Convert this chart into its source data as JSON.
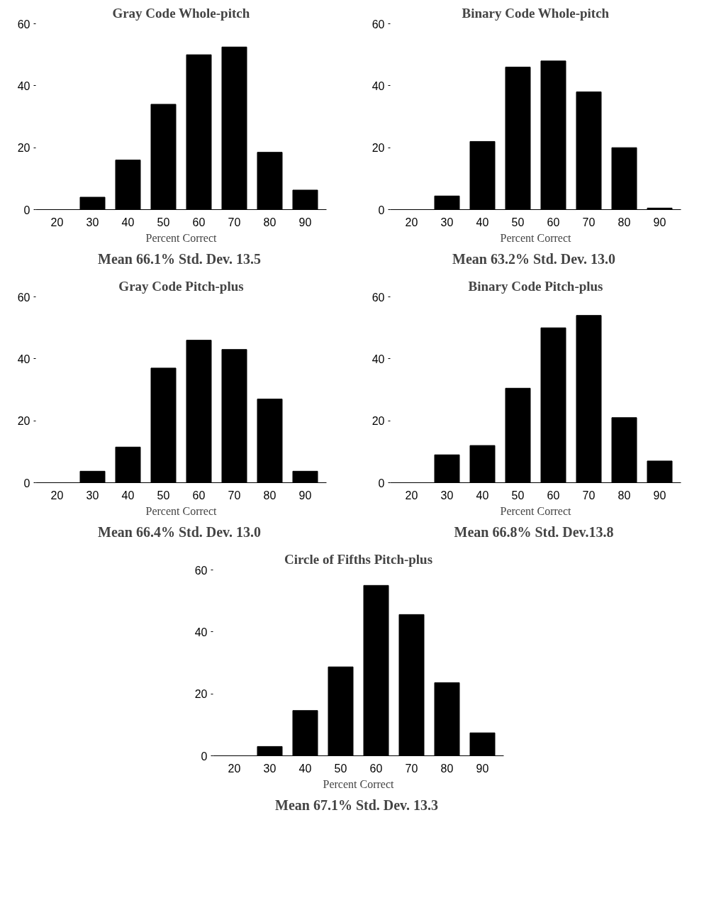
{
  "chart_data": [
    {
      "type": "bar",
      "title": "Gray Code Whole-pitch",
      "xlabel": "Percent Correct",
      "categories": [
        "20",
        "30",
        "40",
        "50",
        "60",
        "70",
        "80",
        "90"
      ],
      "values": [
        null,
        4,
        16,
        34,
        50,
        52.5,
        18.5,
        6.3
      ],
      "color": "#000000",
      "ylim": [
        0,
        60
      ],
      "yticks": [
        0,
        20,
        40,
        60
      ],
      "annotations": [
        "Mean 66.1%  Std. Dev. 13.5"
      ]
    },
    {
      "type": "bar",
      "title": "Binary Code Whole-pitch",
      "xlabel": "Percent Correct",
      "categories": [
        "20",
        "30",
        "40",
        "50",
        "60",
        "70",
        "80",
        "90"
      ],
      "values": [
        null,
        4.4,
        22,
        46,
        48,
        38,
        20,
        0.5
      ],
      "color": "#000000",
      "ylim": [
        0,
        60
      ],
      "yticks": [
        0,
        20,
        40,
        60
      ],
      "annotations": [
        "Mean 63.2%  Std. Dev. 13.0"
      ]
    },
    {
      "type": "bar",
      "title": "Gray Code Pitch-plus",
      "xlabel": "Percent Correct",
      "categories": [
        "20",
        "30",
        "40",
        "50",
        "60",
        "70",
        "80",
        "90"
      ],
      "values": [
        null,
        3.7,
        11.5,
        37,
        46,
        43,
        27,
        3.7
      ],
      "color": "#000000",
      "ylim": [
        0,
        60
      ],
      "yticks": [
        0,
        20,
        40,
        60
      ],
      "annotations": [
        "Mean 66.4%  Std. Dev. 13.0"
      ]
    },
    {
      "type": "bar",
      "title": "Binary Code Pitch-plus",
      "xlabel": "Percent Correct",
      "categories": [
        "20",
        "30",
        "40",
        "50",
        "60",
        "70",
        "80",
        "90"
      ],
      "values": [
        null,
        9,
        12,
        30.5,
        50,
        54,
        21,
        7
      ],
      "color": "#000000",
      "ylim": [
        0,
        60
      ],
      "yticks": [
        0,
        20,
        40,
        60
      ],
      "annotations": [
        "Mean 66.8%  Std. Dev.13.8"
      ]
    },
    {
      "type": "bar",
      "title": "Circle of Fifths Pitch-plus",
      "xlabel": "Percent Correct",
      "categories": [
        "20",
        "30",
        "40",
        "50",
        "60",
        "70",
        "80",
        "90"
      ],
      "values": [
        null,
        3,
        14.6,
        28.7,
        55,
        45.6,
        23.6,
        7.4
      ],
      "color": "#000000",
      "ylim": [
        0,
        60
      ],
      "yticks": [
        0,
        20,
        40,
        60
      ],
      "annotations": [
        "Mean 67.1%  Std. Dev. 13.3"
      ]
    }
  ]
}
